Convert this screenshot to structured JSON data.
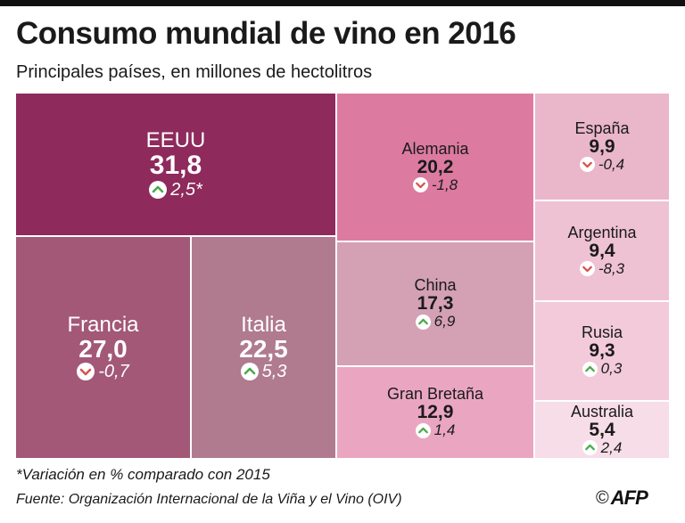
{
  "title": "Consumo mundial de vino en 2016",
  "subtitle": "Principales países, en millones de hectolitros",
  "footnote": "*Variación en % comparado con 2015",
  "source": "Fuente: Organización Internacional de la Viña y el Vino (OIV)",
  "credit": {
    "symbol": "©",
    "logo": "AFP"
  },
  "chart_data": {
    "type": "treemap",
    "value_unit": "millones de hectolitros",
    "items": [
      {
        "name": "EEUU",
        "value": 31.8,
        "value_label": "31,8",
        "change": 2.5,
        "change_label": "2,5*",
        "direction": "up",
        "color": "#8e2a5c",
        "text_color": "#ffffff"
      },
      {
        "name": "Francia",
        "value": 27.0,
        "value_label": "27,0",
        "change": -0.7,
        "change_label": "-0,7",
        "direction": "down",
        "color": "#a35878",
        "text_color": "#ffffff"
      },
      {
        "name": "Italia",
        "value": 22.5,
        "value_label": "22,5",
        "change": 5.3,
        "change_label": "5,3",
        "direction": "up",
        "color": "#b07a8f",
        "text_color": "#ffffff"
      },
      {
        "name": "Alemania",
        "value": 20.2,
        "value_label": "20,2",
        "change": -1.8,
        "change_label": "-1,8",
        "direction": "down",
        "color": "#dc7b9f",
        "text_color": "#1a1a1a"
      },
      {
        "name": "China",
        "value": 17.3,
        "value_label": "17,3",
        "change": 6.9,
        "change_label": "6,9",
        "direction": "up",
        "color": "#d4a0b4",
        "text_color": "#1a1a1a"
      },
      {
        "name": "Gran Bretaña",
        "value": 12.9,
        "value_label": "12,9",
        "change": 1.4,
        "change_label": "1,4",
        "direction": "up",
        "color": "#eaa6c0",
        "text_color": "#1a1a1a"
      },
      {
        "name": "España",
        "value": 9.9,
        "value_label": "9,9",
        "change": -0.4,
        "change_label": "-0,4",
        "direction": "down",
        "color": "#eab6ca",
        "text_color": "#1a1a1a"
      },
      {
        "name": "Argentina",
        "value": 9.4,
        "value_label": "9,4",
        "change": -8.3,
        "change_label": "-8,3",
        "direction": "down",
        "color": "#efc2d3",
        "text_color": "#1a1a1a"
      },
      {
        "name": "Rusia",
        "value": 9.3,
        "value_label": "9,3",
        "change": 0.3,
        "change_label": "0,3",
        "direction": "up",
        "color": "#f2cad9",
        "text_color": "#1a1a1a"
      },
      {
        "name": "Australia",
        "value": 5.4,
        "value_label": "5,4",
        "change": 2.4,
        "change_label": "2,4",
        "direction": "up",
        "color": "#f7dde7",
        "text_color": "#1a1a1a"
      }
    ],
    "icons": {
      "up": "chevron-up-icon",
      "down": "chevron-down-icon",
      "up_color": "#4ca94c",
      "down_color": "#d9534f"
    }
  }
}
